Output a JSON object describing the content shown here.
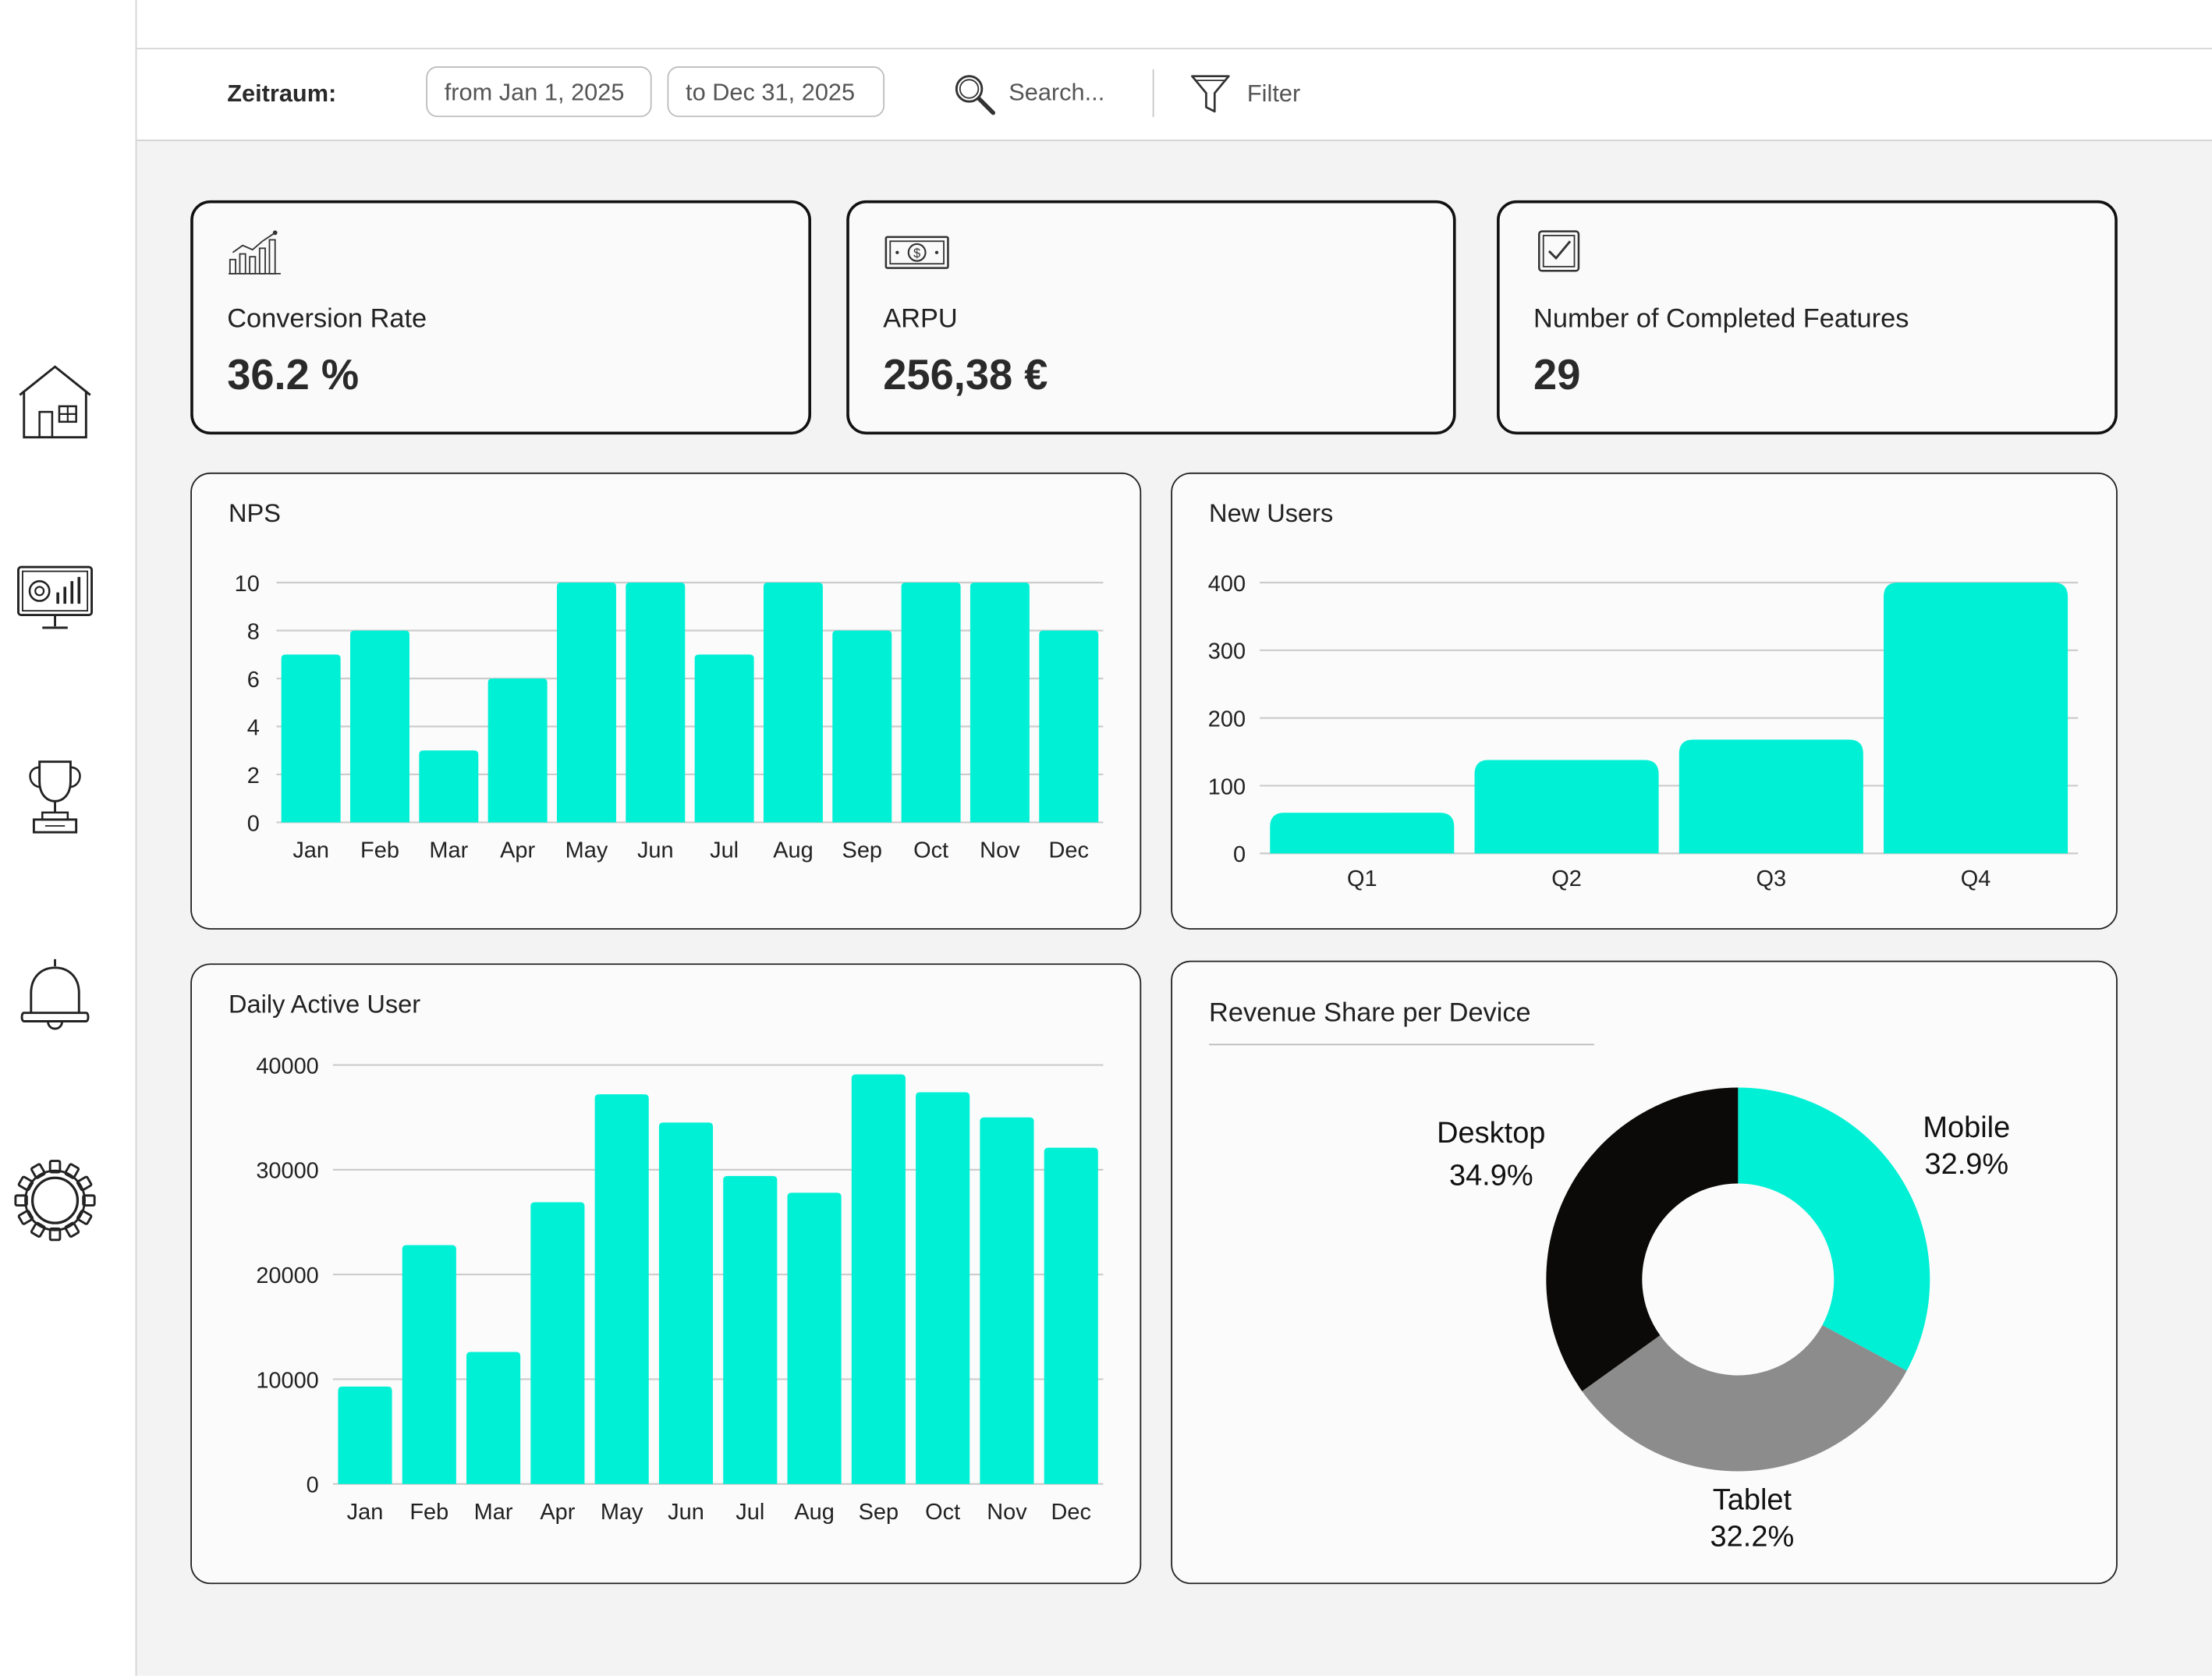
{
  "colors": {
    "accent": "#00f0d6",
    "desktop": "#0b0a08",
    "tablet": "#8c8c8c",
    "grid": "#cccccc"
  },
  "sidebar": {
    "items": [
      {
        "icon": "house-icon"
      },
      {
        "icon": "monitor-chart-icon"
      },
      {
        "icon": "trophy-icon"
      },
      {
        "icon": "bell-icon"
      },
      {
        "icon": "gear-icon"
      }
    ]
  },
  "toolbar": {
    "period_label": "Zeitraum:",
    "from_value": "from Jan 1, 2025",
    "to_value": "to Dec 31, 2025",
    "search_placeholder": "Search...",
    "filter_label": "Filter"
  },
  "kpis": [
    {
      "label": "Conversion Rate",
      "value": "36.2 %",
      "icon": "bar-growth-icon"
    },
    {
      "label": "ARPU",
      "value": "256,38 €",
      "icon": "banknote-icon"
    },
    {
      "label": "Number of Completed Features",
      "value": "29",
      "icon": "checkbox-icon"
    }
  ],
  "chart_data": [
    {
      "type": "bar",
      "title": "NPS",
      "categories": [
        "Jan",
        "Feb",
        "Mar",
        "Apr",
        "May",
        "Jun",
        "Jul",
        "Aug",
        "Sep",
        "Oct",
        "Nov",
        "Dec"
      ],
      "values": [
        7,
        8,
        3,
        6,
        10,
        10,
        7,
        10,
        8,
        10,
        10,
        8
      ],
      "ylim": [
        0,
        10
      ],
      "yticks": [
        0,
        2,
        4,
        6,
        8,
        10
      ],
      "grid": true
    },
    {
      "type": "bar",
      "title": "New Users",
      "categories": [
        "Q1",
        "Q2",
        "Q3",
        "Q4"
      ],
      "values": [
        60,
        138,
        168,
        400
      ],
      "ylim": [
        0,
        400
      ],
      "yticks": [
        0,
        100,
        200,
        300,
        400
      ],
      "grid": true
    },
    {
      "type": "bar",
      "title": "Daily Active User",
      "categories": [
        "Jan",
        "Feb",
        "Mar",
        "Apr",
        "May",
        "Jun",
        "Jul",
        "Aug",
        "Sep",
        "Oct",
        "Nov",
        "Dec"
      ],
      "values": [
        9300,
        22800,
        12600,
        26900,
        37200,
        34500,
        29400,
        27800,
        39100,
        37400,
        35000,
        32100
      ],
      "ylim": [
        0,
        40000
      ],
      "yticks": [
        0,
        10000,
        20000,
        30000,
        40000
      ],
      "grid": true
    },
    {
      "type": "pie",
      "title": "Revenue Share per Device",
      "slices": [
        {
          "label": "Mobile",
          "value": 32.9,
          "display": "32.9%"
        },
        {
          "label": "Tablet",
          "value": 32.2,
          "display": "32.2%"
        },
        {
          "label": "Desktop",
          "value": 34.9,
          "display": "34.9%"
        }
      ],
      "donut": true
    }
  ]
}
